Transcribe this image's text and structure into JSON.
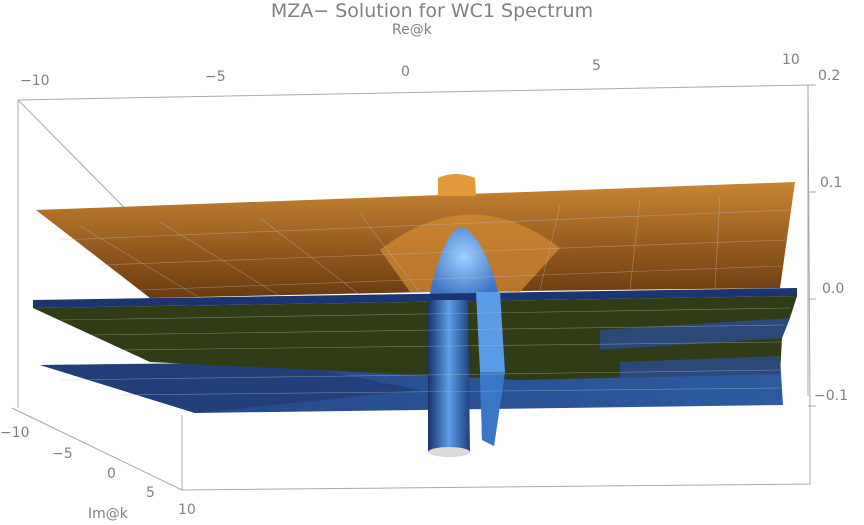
{
  "chart_data": {
    "type": "surface3d",
    "title": "MZA− Solution for WC1 Spectrum",
    "xlabel": "Re@k",
    "ylabel": "Im@k",
    "zlabel": "",
    "xlim": [
      -10,
      10
    ],
    "ylim": [
      -10,
      10
    ],
    "zlim": [
      -0.1,
      0.2
    ],
    "x_ticks": [
      "−10",
      "−5",
      "0",
      "5",
      "10"
    ],
    "y_ticks": [
      "−10",
      "−5",
      "0",
      "5",
      "10"
    ],
    "z_ticks": [
      "0.2",
      "0.1",
      "0.0",
      "−0.1"
    ],
    "surfaces": [
      {
        "color": "#b06a1c",
        "level": 0.07
      },
      {
        "color": "#1f3d7a",
        "level": 0.0
      },
      {
        "color": "#2f3f14",
        "level": 0.0
      },
      {
        "color": "#4f8fdd",
        "level": -0.1
      }
    ],
    "colors": {
      "box": "#a8a8a8",
      "orange_top": "#c27a27",
      "orange_bottom": "#6e3c10",
      "green": "#2e3b15",
      "blue_dark": "#1d3a78",
      "blue_light": "#6aa8ef"
    }
  }
}
